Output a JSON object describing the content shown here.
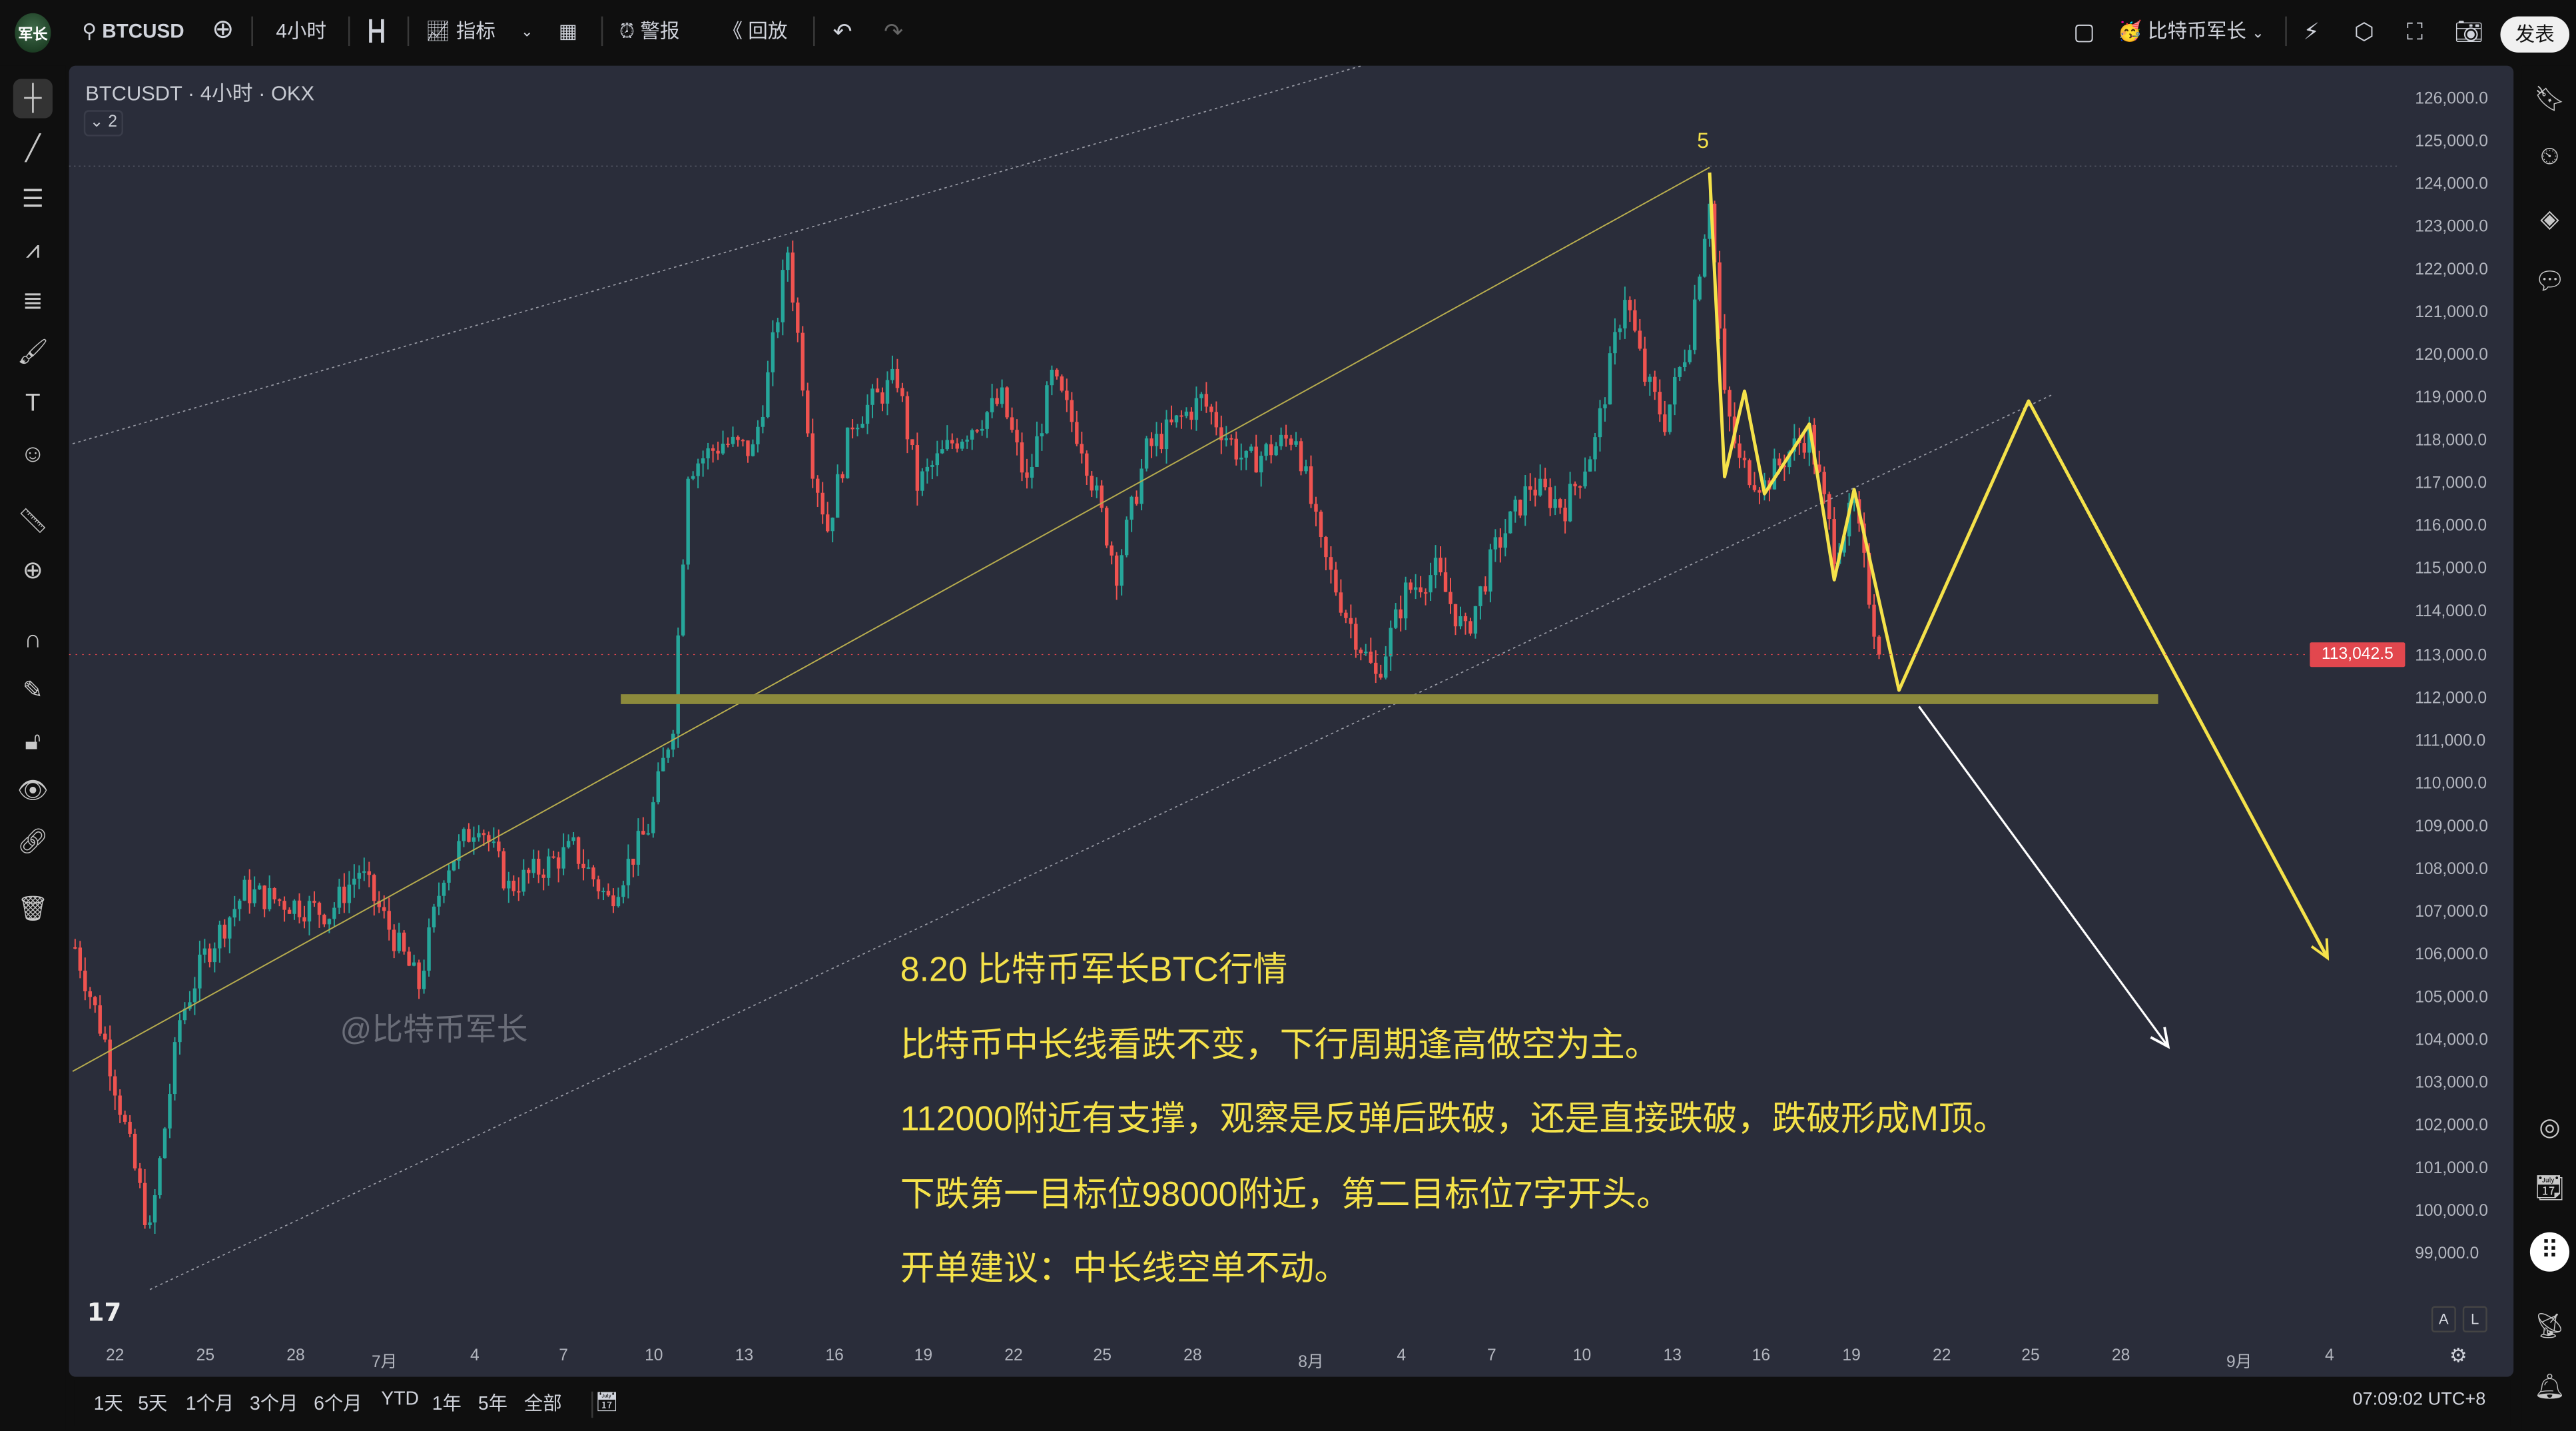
{
  "topbar": {
    "logo_text": "军长",
    "symbol": "BTCUSD",
    "interval": "4小时",
    "indicators_label": "指标",
    "alert_label": "警报",
    "replay_label": "回放",
    "user_name": "比特币军长",
    "publish_label": "发表"
  },
  "chart": {
    "legend_title": "BTCUSDT · 4小时 · OKX",
    "collapse_count": "2",
    "watermark": "@比特币军长",
    "wave_label": "5",
    "last_price": "113,042.5",
    "price_ticks": [
      "126,000.0",
      "125,000.0",
      "124,000.0",
      "123,000.0",
      "122,000.0",
      "121,000.0",
      "120,000.0",
      "119,000.0",
      "118,000.0",
      "117,000.0",
      "116,000.0",
      "115,000.0",
      "114,000.0",
      "113,000.0",
      "112,000.0",
      "111,000.0",
      "110,000.0",
      "109,000.0",
      "108,000.0",
      "107,000.0",
      "106,000.0",
      "105,000.0",
      "104,000.0",
      "103,000.0",
      "102,000.0",
      "101,000.0",
      "100,000.0",
      "99,000.0"
    ],
    "time_ticks": [
      "22",
      "25",
      "28",
      "7月",
      "4",
      "7",
      "10",
      "13",
      "16",
      "19",
      "22",
      "25",
      "28",
      "8月",
      "4",
      "7",
      "10",
      "13",
      "16",
      "19",
      "22",
      "25",
      "28",
      "9月",
      "4"
    ],
    "scale_buttons": [
      "A",
      "L"
    ],
    "notes": [
      "8.20 比特币军长BTC行情",
      "比特币中长线看跌不变，下行周期逢高做空为主。",
      "112000附近有支撑，观察是反弹后跌破，还是直接跌破，跌破形成M顶。",
      "下跌第一目标位98000附近，第二目标位7字开头。",
      "开单建议：中长线空单不动。"
    ],
    "colors": {
      "up": "#26a69a",
      "down": "#ef5350",
      "annotation": "#f5e24a",
      "support": "#8c8a3c",
      "background": "#2a2d3a",
      "last_price": "#e2474e"
    }
  },
  "chart_data": {
    "type": "candlestick",
    "symbol": "BTCUSDT",
    "interval": "4小时",
    "exchange": "OKX",
    "ylim": [
      98000,
      126500
    ],
    "approx_close_path": [
      [
        "6/20 16",
        106200
      ],
      [
        "6/21 16",
        104000
      ],
      [
        "6/23 04",
        99500
      ],
      [
        "6/24 04",
        104500
      ],
      [
        "6/25 00",
        106000
      ],
      [
        "6/26 08",
        107500
      ],
      [
        "6/29 04",
        107000
      ],
      [
        "6/30 04",
        108000
      ],
      [
        "7/2 04",
        105300
      ],
      [
        "7/3 00",
        108000
      ],
      [
        "7/4 04",
        109200
      ],
      [
        "7/5 04",
        107600
      ],
      [
        "7/7 08",
        108500
      ],
      [
        "7/8 12",
        107300
      ],
      [
        "7/9 20",
        109000
      ],
      [
        "7/10 16",
        111500
      ],
      [
        "7/11 04",
        117400
      ],
      [
        "7/12 08",
        118000
      ],
      [
        "7/13 08",
        117800
      ],
      [
        "7/13 20",
        119500
      ],
      [
        "7/14 12",
        122500
      ],
      [
        "7/15 08",
        117500
      ],
      [
        "7/15 20",
        116000
      ],
      [
        "7/16 16",
        118500
      ],
      [
        "7/18 04",
        119500
      ],
      [
        "7/18 20",
        117000
      ],
      [
        "7/20 00",
        118000
      ],
      [
        "7/21 16",
        119000
      ],
      [
        "7/22 12",
        117000
      ],
      [
        "7/23 08",
        119500
      ],
      [
        "7/24 08",
        118000
      ],
      [
        "7/25 12",
        115000
      ],
      [
        "7/26 12",
        117800
      ],
      [
        "7/28 08",
        119000
      ],
      [
        "7/29 20",
        117500
      ],
      [
        "7/31 12",
        118200
      ],
      [
        "8/1 08",
        115500
      ],
      [
        "8/2 04",
        114000
      ],
      [
        "8/3 04",
        112500
      ],
      [
        "8/4 04",
        114500
      ],
      [
        "8/5 04",
        115000
      ],
      [
        "8/6 04",
        113500
      ],
      [
        "8/7 04",
        115500
      ],
      [
        "8/8 08",
        117000
      ],
      [
        "8/9 12",
        116500
      ],
      [
        "8/10 12",
        118000
      ],
      [
        "8/11 12",
        121500
      ],
      [
        "8/12 04",
        119500
      ],
      [
        "8/12 20",
        118500
      ],
      [
        "8/13 16",
        120500
      ],
      [
        "8/14 08",
        123800
      ],
      [
        "8/14 20",
        119000
      ],
      [
        "8/15 08",
        117500
      ],
      [
        "8/16 04",
        117000
      ],
      [
        "8/17 00",
        117800
      ],
      [
        "8/17 16",
        118200
      ],
      [
        "8/18 12",
        115500
      ],
      [
        "8/19 04",
        116500
      ],
      [
        "8/20 00",
        113042.5
      ]
    ],
    "drawings": {
      "support_level": {
        "price": 112000,
        "from": "7/8 22",
        "to": "8/29 08"
      },
      "channel_upper": [
        [
          "6/20 14",
          117970
        ],
        [
          "8/2 16",
          126800
        ]
      ],
      "trend_mid": [
        [
          "6/20 14",
          103300
        ],
        [
          "8/14 08",
          124430
        ]
      ],
      "channel_lower": [
        [
          "6/23 04",
          98200
        ],
        [
          "8/25 20",
          119130
        ]
      ],
      "high_line_price": 124460,
      "forecast_zigzag": [
        [
          "8/14 08",
          124310
        ],
        [
          "8/14 20",
          117200
        ],
        [
          "8/15 12",
          119200
        ],
        [
          "8/16 04",
          116800
        ],
        [
          "8/17 16",
          118430
        ],
        [
          "8/18 12",
          114790
        ],
        [
          "8/19 04",
          116900
        ],
        [
          "8/20 16",
          112210
        ],
        [
          "8/25 00",
          118970
        ],
        [
          "9/4 00",
          105950
        ]
      ],
      "breakdown_arrow": [
        [
          "8/21 08",
          111830
        ],
        [
          "8/29 16",
          103880
        ]
      ]
    }
  },
  "bottombar": {
    "ranges": [
      "1天",
      "5天",
      "1个月",
      "3个月",
      "6个月",
      "YTD",
      "1年",
      "5年",
      "全部"
    ],
    "clock": "07:09:02 UTC+8"
  }
}
